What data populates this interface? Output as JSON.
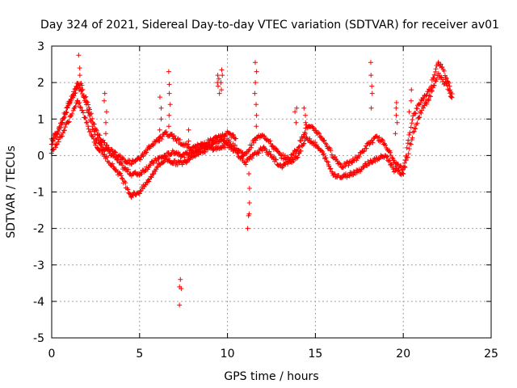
{
  "chart_data": {
    "type": "scatter",
    "title": "Day 324 of 2021, Sidereal Day-to-day VTEC variation (SDTVAR) for receiver av01",
    "xlabel": "GPS time / hours",
    "ylabel": "SDTVAR / TECUs",
    "xlim": [
      0,
      25
    ],
    "ylim": [
      -5,
      3
    ],
    "xticks": [
      0,
      5,
      10,
      15,
      20,
      25
    ],
    "yticks": [
      -5,
      -4,
      -3,
      -2,
      -1,
      0,
      1,
      2,
      3
    ],
    "grid": true,
    "marker": "+",
    "series": [
      {
        "name": "SDTVAR",
        "color": "#ff0000",
        "trends": [
          {
            "x": [
              0,
              0.3,
              0.8,
              1.2,
              1.5,
              1.7,
              2.0,
              2.5,
              3.0,
              3.5,
              4.0,
              4.5,
              5.0,
              5.5,
              6.0,
              6.5,
              7.0,
              7.5,
              8.0,
              8.5,
              9.0,
              9.5,
              10.0,
              10.5,
              11.0,
              11.5,
              12.0,
              12.5,
              13.0,
              13.5,
              14.0,
              14.5,
              15.0,
              15.5,
              16.0,
              16.5,
              17.0,
              17.5,
              18.0,
              18.5,
              19.0,
              19.5,
              20.0,
              20.5,
              21.0,
              21.5,
              22.0,
              22.3,
              22.8
            ],
            "y": [
              0.3,
              0.6,
              1.2,
              1.7,
              2.0,
              1.9,
              1.3,
              0.5,
              0.2,
              0.0,
              -0.3,
              -0.5,
              -0.5,
              -0.3,
              -0.1,
              0.0,
              0.1,
              0.0,
              0.1,
              0.2,
              0.3,
              0.4,
              0.4,
              0.2,
              0.0,
              0.4,
              0.6,
              0.3,
              0.0,
              -0.1,
              0.2,
              0.8,
              0.7,
              0.4,
              0.0,
              -0.3,
              -0.2,
              0.0,
              0.3,
              0.5,
              0.3,
              -0.2,
              -0.4,
              1.0,
              1.5,
              1.8,
              2.6,
              2.3,
              1.7
            ]
          },
          {
            "x": [
              0,
              0.5,
              1.0,
              1.5,
              2.0,
              2.5,
              3.0,
              3.5,
              4.0,
              4.5,
              5.0,
              5.5,
              6.0,
              6.5,
              7.0,
              7.5,
              8.0,
              8.5,
              9.0,
              9.5,
              10.0,
              10.5,
              11.0,
              11.5,
              12.0,
              12.5,
              13.0,
              13.5,
              14.0,
              14.5,
              15.0,
              15.5,
              16.0,
              16.5,
              17.0,
              17.5,
              18.0,
              18.5,
              19.0,
              19.5,
              20.0,
              20.5,
              21.0,
              21.5,
              22.0,
              22.5,
              22.8
            ],
            "y": [
              0.1,
              0.5,
              1.0,
              1.5,
              0.9,
              0.3,
              0.0,
              -0.3,
              -0.6,
              -1.1,
              -1.0,
              -0.7,
              -0.3,
              -0.1,
              -0.2,
              -0.2,
              0.0,
              0.1,
              0.2,
              0.2,
              0.3,
              0.1,
              -0.2,
              0.0,
              0.2,
              0.0,
              -0.3,
              -0.2,
              0.0,
              0.5,
              0.3,
              0.0,
              -0.5,
              -0.6,
              -0.5,
              -0.4,
              -0.2,
              -0.1,
              0.0,
              -0.4,
              -0.5,
              0.5,
              1.2,
              1.6,
              2.2,
              1.9,
              1.5
            ]
          },
          {
            "x": [
              0,
              0.5,
              1.0,
              1.5,
              2.0,
              2.5,
              3.0,
              3.5,
              4.0,
              4.5,
              5.0,
              5.5,
              6.0,
              6.5,
              7.0,
              7.5,
              8.0,
              8.5,
              9.0,
              9.5,
              10.0,
              10.5
            ],
            "y": [
              0.4,
              0.8,
              1.4,
              1.9,
              1.5,
              0.7,
              0.3,
              0.1,
              -0.1,
              -0.2,
              -0.1,
              0.2,
              0.4,
              0.6,
              0.5,
              0.3,
              0.2,
              0.3,
              0.4,
              0.5,
              0.6,
              0.5
            ]
          }
        ],
        "bursts": [
          {
            "x": 1.6,
            "y": [
              1.8,
              2.2,
              2.4,
              2.75
            ]
          },
          {
            "x": 3.05,
            "y": [
              0.6,
              0.9,
              1.2,
              1.5,
              1.7
            ]
          },
          {
            "x": 6.2,
            "y": [
              0.4,
              0.7,
              1.0,
              1.3,
              1.6
            ]
          },
          {
            "x": 6.7,
            "y": [
              0.8,
              1.1,
              1.4,
              1.7,
              1.95,
              2.3
            ]
          },
          {
            "x": 7.3,
            "y": [
              -3.4,
              -3.6,
              -3.65,
              -4.1
            ]
          },
          {
            "x": 7.8,
            "y": [
              0.4,
              0.7
            ]
          },
          {
            "x": 9.5,
            "y": [
              1.7,
              1.9,
              2.0,
              2.1,
              2.2
            ]
          },
          {
            "x": 9.7,
            "y": [
              1.8,
              2.0,
              2.2,
              2.35
            ]
          },
          {
            "x": 11.2,
            "y": [
              -0.5,
              -0.9,
              -1.3,
              -1.6,
              -1.65,
              -2.0
            ]
          },
          {
            "x": 11.6,
            "y": [
              0.8,
              1.1,
              1.4,
              1.7,
              2.0,
              2.3,
              2.55
            ]
          },
          {
            "x": 13.9,
            "y": [
              0.9,
              1.2,
              1.3
            ]
          },
          {
            "x": 14.4,
            "y": [
              0.6,
              0.9,
              1.1,
              1.3
            ]
          },
          {
            "x": 18.2,
            "y": [
              1.3,
              1.7,
              1.9,
              2.2,
              2.55
            ]
          },
          {
            "x": 19.6,
            "y": [
              0.6,
              0.9,
              1.1,
              1.3,
              1.45
            ]
          },
          {
            "x": 20.4,
            "y": [
              1.2,
              1.5,
              1.8
            ]
          }
        ]
      }
    ]
  }
}
